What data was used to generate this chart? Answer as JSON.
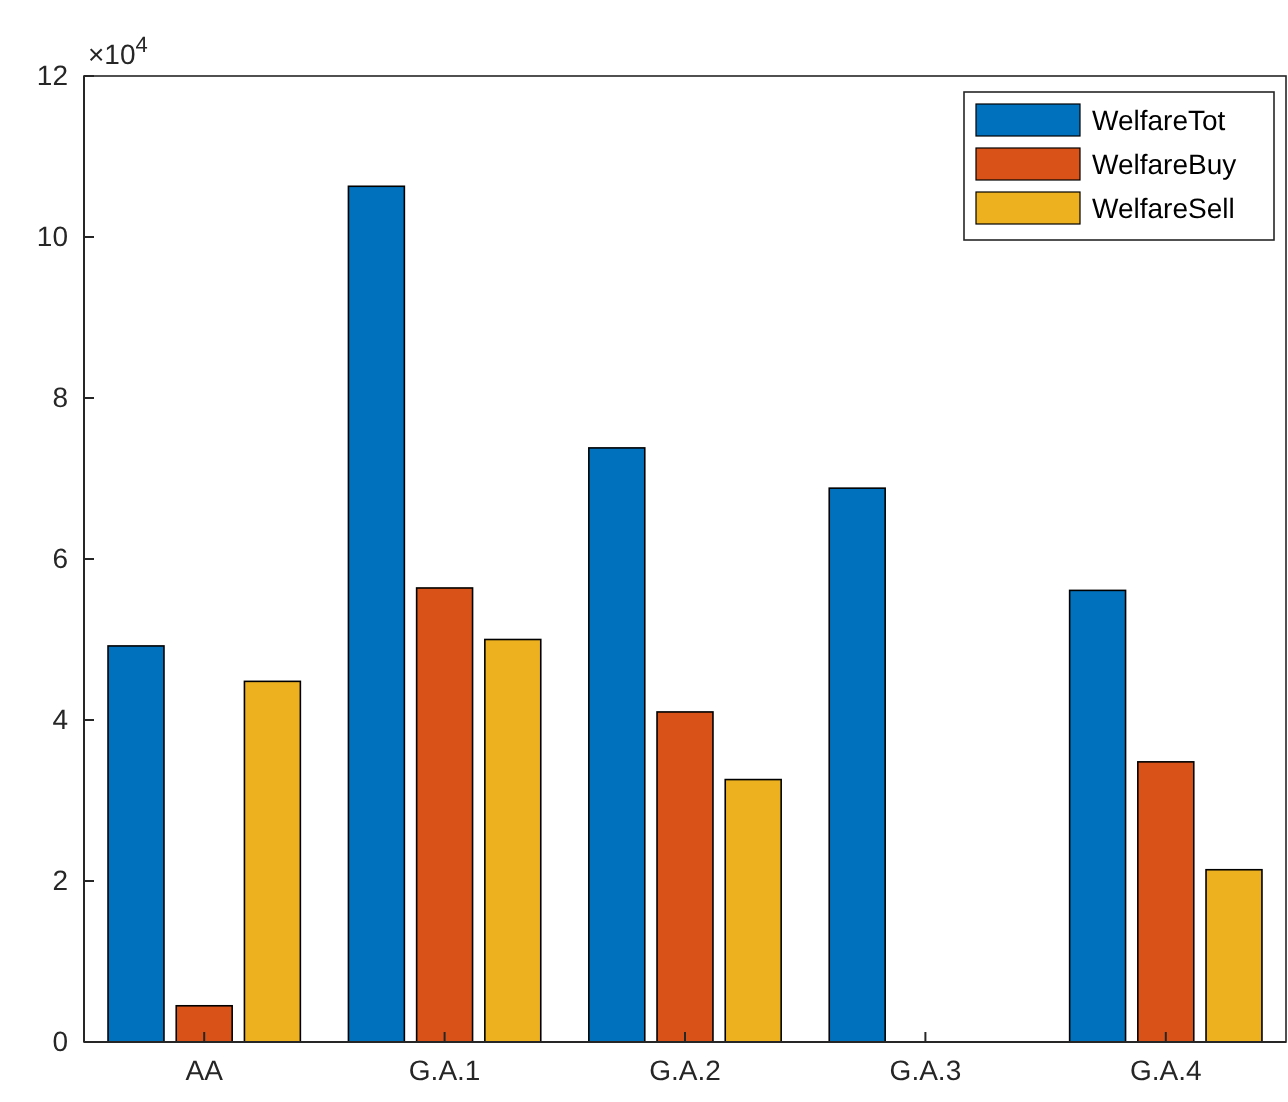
{
  "chart_data": {
    "type": "bar",
    "categories": [
      "AA",
      "G.A.1",
      "G.A.2",
      "G.A.3",
      "G.A.4"
    ],
    "series": [
      {
        "name": "WelfareTot",
        "color": "#0072bd",
        "values": [
          4.92,
          10.63,
          7.38,
          6.88,
          5.61
        ]
      },
      {
        "name": "WelfareBuy",
        "color": "#d95319",
        "values": [
          0.45,
          5.64,
          4.1,
          0,
          3.48
        ]
      },
      {
        "name": "WelfareSell",
        "color": "#edb120",
        "values": [
          4.48,
          5.0,
          3.26,
          0,
          2.14
        ]
      }
    ],
    "ylim": [
      0,
      12
    ],
    "yticks": [
      0,
      2,
      4,
      6,
      8,
      10,
      12
    ],
    "annotations": [
      "×10$^{4}$"
    ],
    "legend": "top right",
    "grid": false
  }
}
